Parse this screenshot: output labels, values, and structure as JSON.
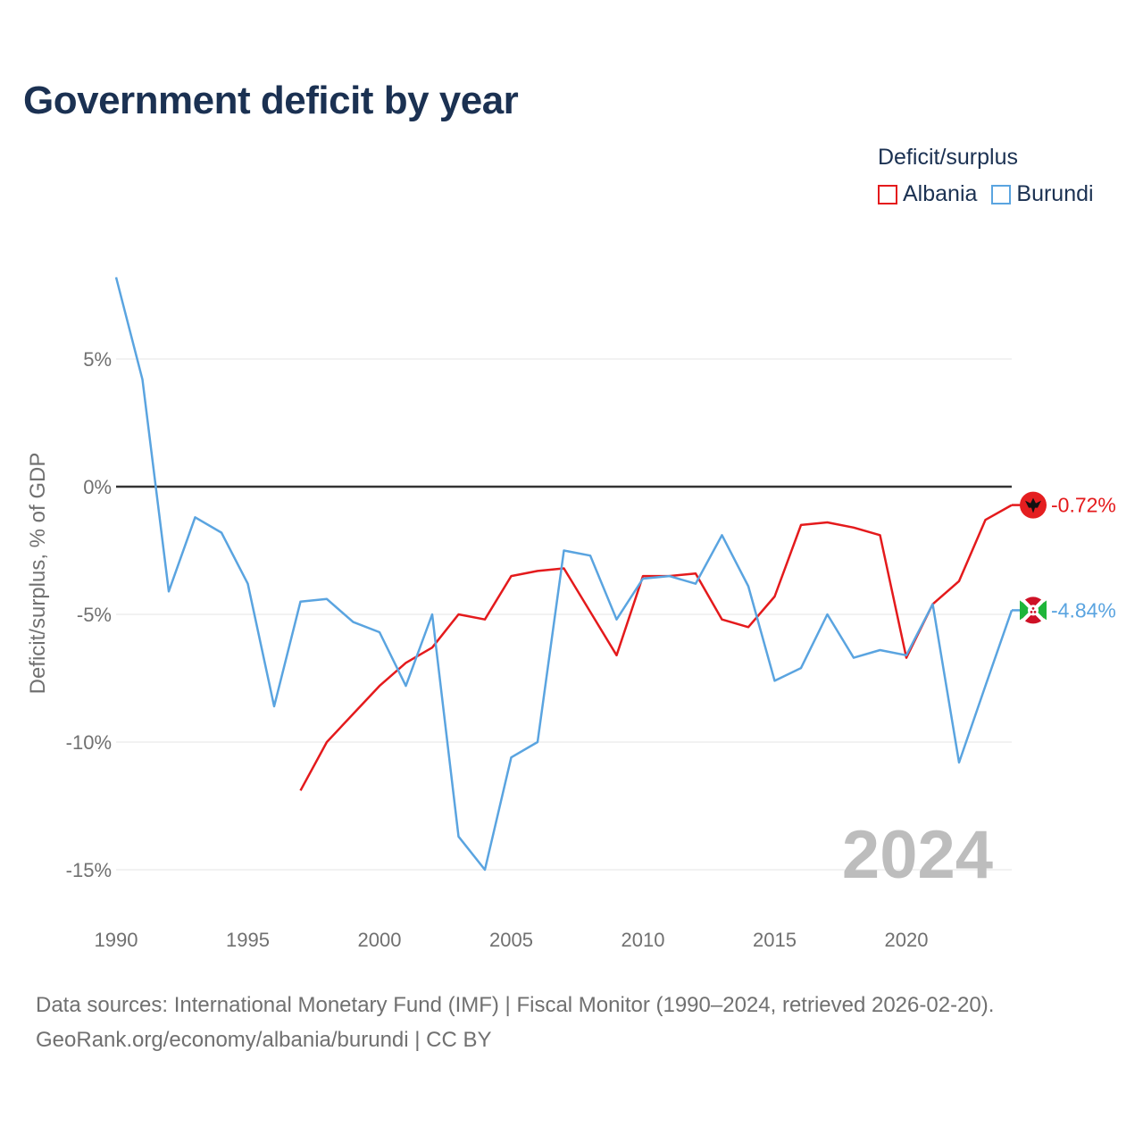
{
  "title": "Government deficit by year",
  "legend": {
    "title": "Deficit/surplus",
    "items": [
      {
        "label": "Albania",
        "color": "#e41a1c"
      },
      {
        "label": "Burundi",
        "color": "#5aa4e0"
      }
    ]
  },
  "chart_data": {
    "type": "line",
    "title": "Government deficit by year",
    "xlabel": "",
    "ylabel": "Deficit/surplus, % of GDP",
    "xlim": [
      1990,
      2024
    ],
    "ylim": [
      -16.5,
      9.5
    ],
    "x_ticks": [
      1990,
      1995,
      2000,
      2005,
      2010,
      2015,
      2020
    ],
    "y_ticks": [
      5,
      0,
      -5,
      -10,
      -15
    ],
    "y_tick_labels": [
      "5%",
      "0%",
      "-5%",
      "-10%",
      "-15%"
    ],
    "grid": true,
    "year_watermark": "2024",
    "series": [
      {
        "name": "Albania",
        "color": "#e41a1c",
        "end_label": "-0.72%",
        "flag_icon": "albania-flag-icon",
        "x": [
          1997,
          1998,
          1999,
          2000,
          2001,
          2002,
          2003,
          2004,
          2005,
          2006,
          2007,
          2008,
          2009,
          2010,
          2011,
          2012,
          2013,
          2014,
          2015,
          2016,
          2017,
          2018,
          2019,
          2020,
          2021,
          2022,
          2023,
          2024
        ],
        "values": [
          -11.9,
          -10.0,
          -8.9,
          -7.8,
          -6.9,
          -6.3,
          -5.0,
          -5.2,
          -3.5,
          -3.3,
          -3.2,
          -4.9,
          -6.6,
          -3.5,
          -3.5,
          -3.4,
          -5.2,
          -5.5,
          -4.3,
          -1.5,
          -1.4,
          -1.6,
          -1.9,
          -6.7,
          -4.6,
          -3.7,
          -1.3,
          -0.72
        ]
      },
      {
        "name": "Burundi",
        "color": "#5aa4e0",
        "end_label": "-4.84%",
        "flag_icon": "burundi-flag-icon",
        "x": [
          1990,
          1991,
          1992,
          1993,
          1994,
          1995,
          1996,
          1997,
          1998,
          1999,
          2000,
          2001,
          2002,
          2003,
          2004,
          2005,
          2006,
          2007,
          2008,
          2009,
          2010,
          2011,
          2012,
          2013,
          2014,
          2015,
          2016,
          2017,
          2018,
          2019,
          2020,
          2021,
          2022,
          2023,
          2024
        ],
        "values": [
          8.2,
          4.2,
          -4.1,
          -1.2,
          -1.8,
          -3.8,
          -8.6,
          -4.5,
          -4.4,
          -5.3,
          -5.7,
          -7.8,
          -5.0,
          -13.7,
          -15.0,
          -10.6,
          -10.0,
          -2.5,
          -2.7,
          -5.2,
          -3.6,
          -3.5,
          -3.8,
          -1.9,
          -3.9,
          -7.6,
          -7.1,
          -5.0,
          -6.7,
          -6.4,
          -6.6,
          -4.6,
          -10.8,
          -7.8,
          -4.84
        ]
      }
    ]
  },
  "source": {
    "line1": "Data sources: International Monetary Fund (IMF) | Fiscal Monitor (1990–2024, retrieved 2026-02-20).",
    "line2": "GeoRank.org/economy/albania/burundi | CC BY"
  }
}
